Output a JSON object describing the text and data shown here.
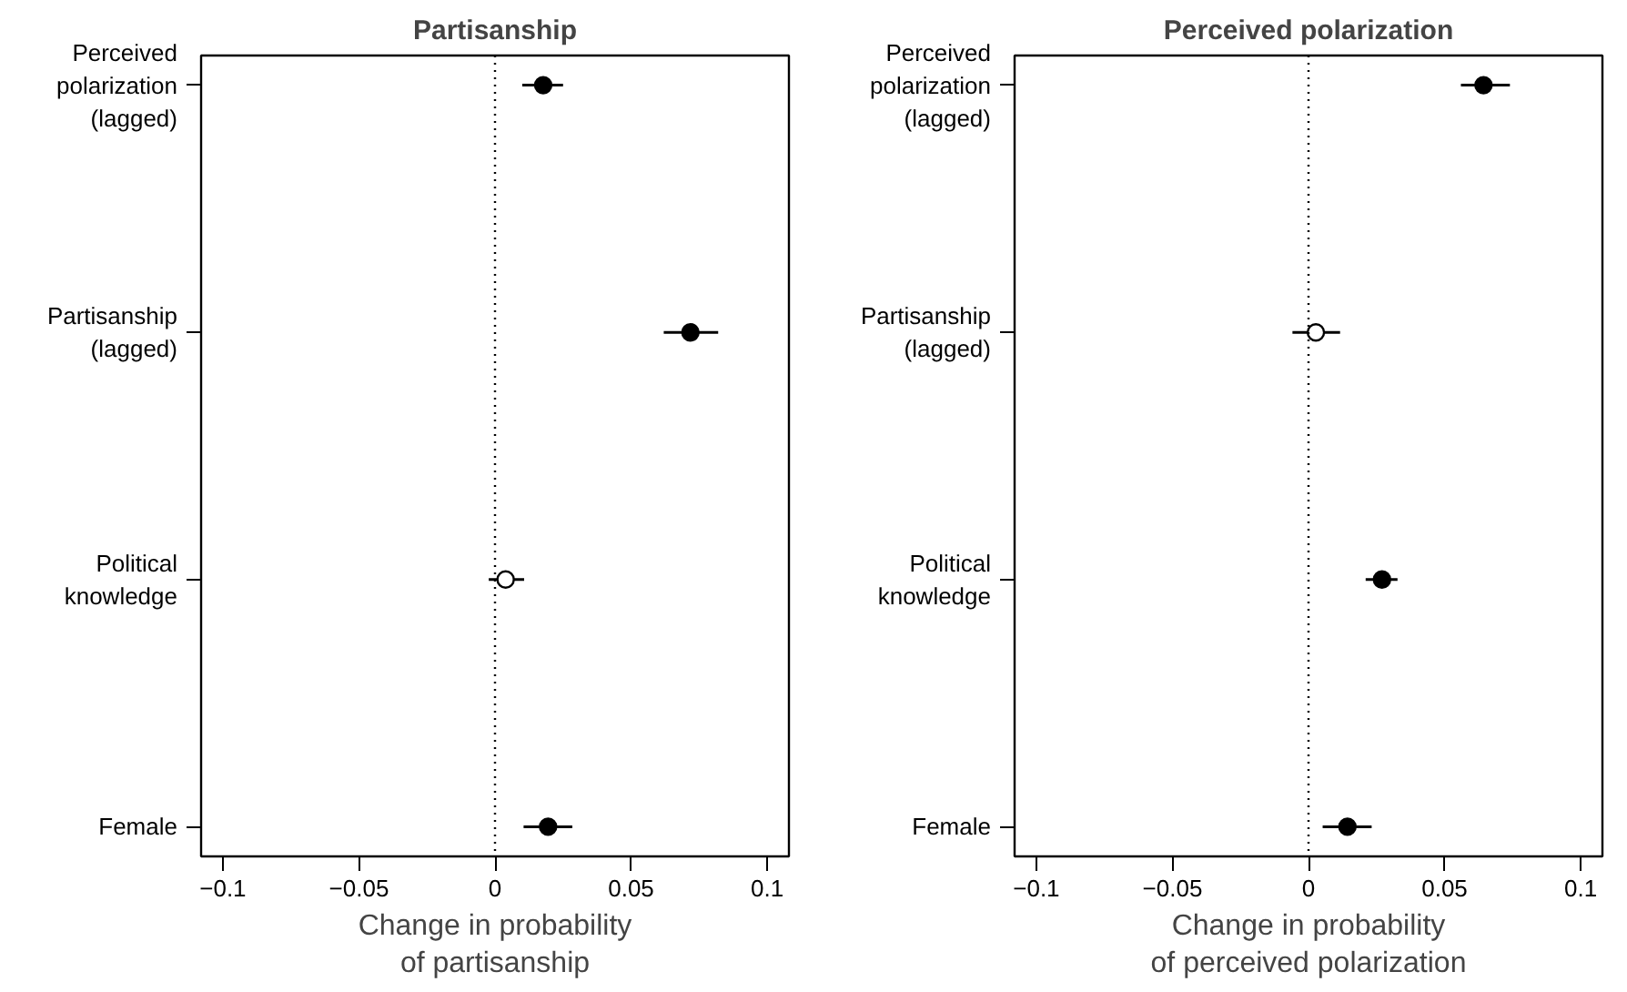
{
  "chart_data": [
    {
      "type": "scatter",
      "orientation": "horizontal",
      "title": "Partisanship",
      "xlabel": "Change in probability\nof partisanship",
      "categories": [
        "Perceived\npolarization\n(lagged)",
        "Partisanship\n(lagged)",
        "Political\nknowledge",
        "Female"
      ],
      "values": [
        0.0177,
        0.0718,
        0.0039,
        0.0195
      ],
      "errors": [
        [
          0.01,
          0.025
        ],
        [
          0.062,
          0.082
        ],
        [
          -0.0023,
          0.0107
        ],
        [
          0.0105,
          0.0284
        ]
      ],
      "colors": [
        "#000000",
        "#000000",
        "#ffffff",
        "#000000"
      ],
      "marker": "circle",
      "grid": false,
      "xlim": [
        -0.108,
        0.108
      ],
      "xticks": [
        -0.1,
        -0.05,
        0,
        0.05,
        0.1
      ],
      "ref_lines": [
        {
          "axis": "x",
          "value": 0,
          "line_style": "dotted",
          "color": "#000000"
        }
      ]
    },
    {
      "type": "scatter",
      "orientation": "horizontal",
      "title": "Perceived polarization",
      "xlabel": "Change in probability\nof perceived polarization",
      "categories": [
        "Perceived\npolarization\n(lagged)",
        "Partisanship\n(lagged)",
        "Political\nknowledge",
        "Female"
      ],
      "values": [
        0.0643,
        0.0027,
        0.027,
        0.0143
      ],
      "errors": [
        [
          0.056,
          0.074
        ],
        [
          -0.0059,
          0.0116
        ],
        [
          0.021,
          0.0327
        ],
        [
          0.0052,
          0.0232
        ]
      ],
      "colors": [
        "#000000",
        "#ffffff",
        "#000000",
        "#000000"
      ],
      "marker": "circle",
      "grid": false,
      "xlim": [
        -0.108,
        0.108
      ],
      "xticks": [
        -0.1,
        -0.05,
        0,
        0.05,
        0.1
      ],
      "ref_lines": [
        {
          "axis": "x",
          "value": 0,
          "line_style": "dotted",
          "color": "#000000"
        }
      ]
    }
  ]
}
